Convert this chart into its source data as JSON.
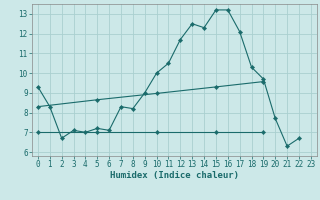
{
  "xlabel": "Humidex (Indice chaleur)",
  "bg_color": "#cce8e8",
  "grid_color": "#aad0d0",
  "line_color": "#1a6b6b",
  "xlim": [
    -0.5,
    23.5
  ],
  "ylim": [
    5.8,
    13.5
  ],
  "yticks": [
    6,
    7,
    8,
    9,
    10,
    11,
    12,
    13
  ],
  "xticks": [
    0,
    1,
    2,
    3,
    4,
    5,
    6,
    7,
    8,
    9,
    10,
    11,
    12,
    13,
    14,
    15,
    16,
    17,
    18,
    19,
    20,
    21,
    22,
    23
  ],
  "curve1_x": [
    0,
    1,
    2,
    3,
    4,
    5,
    6,
    7,
    8,
    9,
    10,
    11,
    12,
    13,
    14,
    15,
    16,
    17,
    18,
    19,
    20,
    21,
    22
  ],
  "curve1_y": [
    9.3,
    8.3,
    6.7,
    7.1,
    7.0,
    7.2,
    7.1,
    8.3,
    8.2,
    9.0,
    10.0,
    10.5,
    11.7,
    12.5,
    12.3,
    13.2,
    13.2,
    12.1,
    10.3,
    9.7,
    7.7,
    6.3,
    6.7
  ],
  "curve2_x": [
    0,
    5,
    10,
    15,
    19
  ],
  "curve2_y": [
    8.3,
    8.65,
    8.97,
    9.3,
    9.57
  ],
  "curve3_x": [
    0,
    5,
    10,
    15,
    19
  ],
  "curve3_y": [
    7.0,
    7.0,
    7.0,
    7.0,
    7.0
  ]
}
